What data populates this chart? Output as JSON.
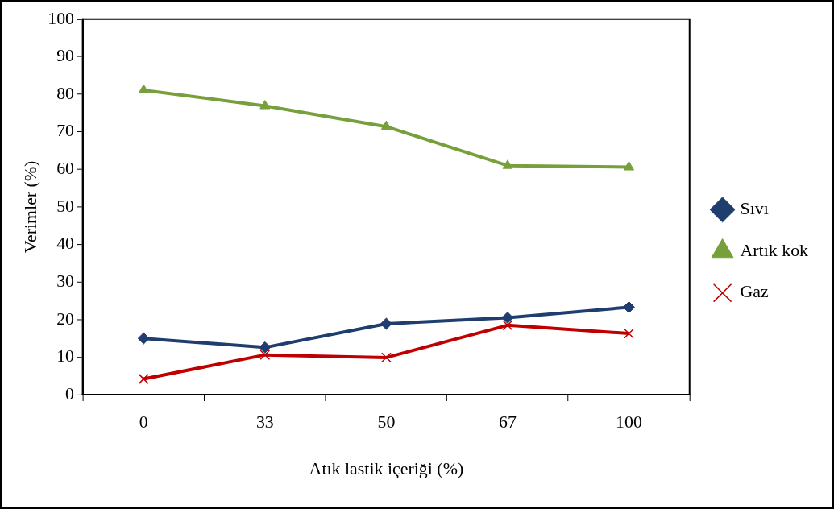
{
  "chart_data": {
    "type": "line",
    "xlabel": "Atık lastik içeriği (%)",
    "ylabel": "Verimler (%)",
    "categories": [
      "0",
      "33",
      "50",
      "67",
      "100"
    ],
    "series": [
      {
        "name": "Sıvı",
        "color": "#1f3d6e",
        "marker": "diamond",
        "values": [
          15.0,
          12.6,
          18.9,
          20.5,
          23.3
        ]
      },
      {
        "name": "Artık kok",
        "color": "#77a03c",
        "marker": "triangle",
        "values": [
          81.1,
          76.9,
          71.4,
          61.0,
          60.6
        ]
      },
      {
        "name": "Gaz",
        "color": "#c00000",
        "marker": "cross",
        "values": [
          4.2,
          10.6,
          9.9,
          18.5,
          16.3
        ]
      }
    ],
    "ylim": [
      0,
      100
    ],
    "yticks": [
      0,
      10,
      20,
      30,
      40,
      50,
      60,
      70,
      80,
      90,
      100
    ],
    "grid": false,
    "legend": "right",
    "line_style": "solid"
  }
}
